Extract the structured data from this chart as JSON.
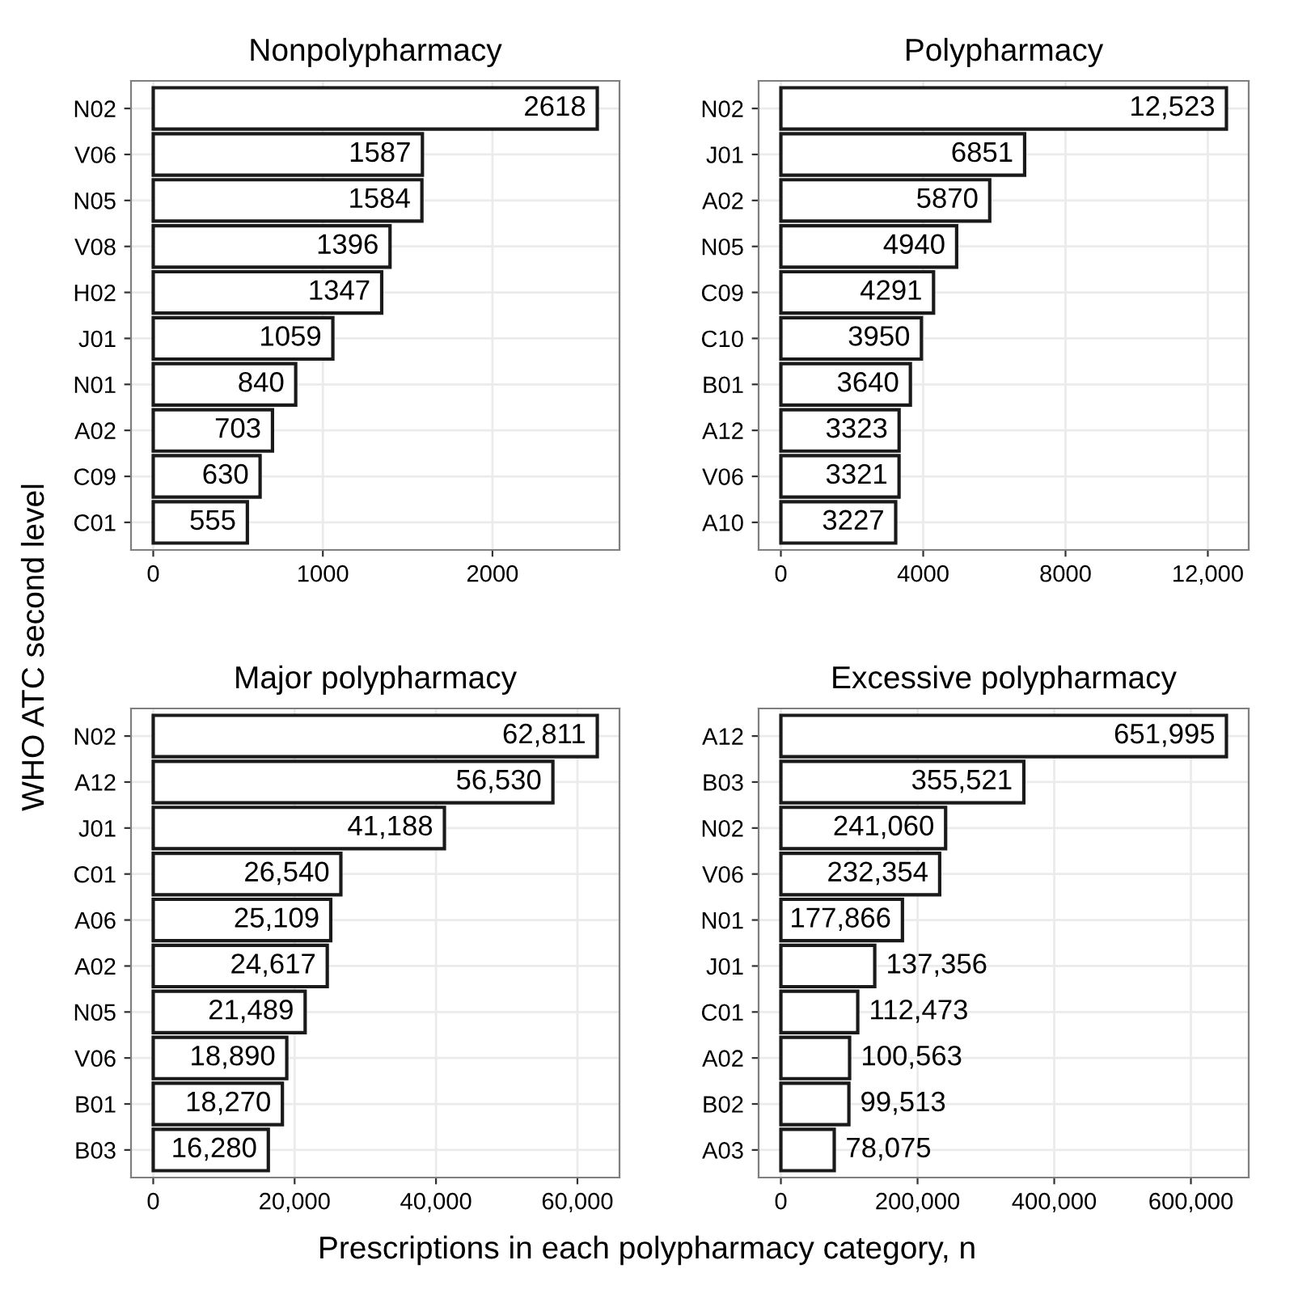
{
  "chart_data": [
    {
      "type": "bar",
      "orientation": "horizontal",
      "title": "Nonpolypharmacy",
      "ylabel": "WHO ATC second level",
      "categories": [
        "N02",
        "V06",
        "N05",
        "V08",
        "H02",
        "J01",
        "N01",
        "A02",
        "C09",
        "C01"
      ],
      "values": [
        2618,
        1587,
        1584,
        1396,
        1347,
        1059,
        840,
        703,
        630,
        555
      ],
      "value_labels": [
        "2618",
        "1587",
        "1584",
        "1396",
        "1347",
        "1059",
        "840",
        "703",
        "630",
        "555"
      ],
      "color": "#ffffff",
      "xlim": [
        -131,
        2749
      ],
      "xticks": [
        0,
        1000,
        2000
      ],
      "grid": true,
      "legend": false
    },
    {
      "type": "bar",
      "orientation": "horizontal",
      "title": "Polypharmacy",
      "categories": [
        "N02",
        "J01",
        "A02",
        "N05",
        "C09",
        "C10",
        "B01",
        "A12",
        "V06",
        "A10"
      ],
      "values": [
        12523,
        6851,
        5870,
        4940,
        4291,
        3950,
        3640,
        3323,
        3321,
        3227
      ],
      "value_labels": [
        "12,523",
        "6851",
        "5870",
        "4940",
        "4291",
        "3950",
        "3640",
        "3323",
        "3321",
        "3227"
      ],
      "color": "#ffffff",
      "xlim": [
        -626,
        13149
      ],
      "xticks": [
        0,
        4000,
        8000,
        {
          "value": 12000,
          "label": "12,000"
        }
      ],
      "grid": true,
      "legend": false
    },
    {
      "type": "bar",
      "orientation": "horizontal",
      "title": "Major polypharmacy",
      "categories": [
        "N02",
        "A12",
        "J01",
        "C01",
        "A06",
        "A02",
        "N05",
        "V06",
        "B01",
        "B03"
      ],
      "values": [
        62811,
        56530,
        41188,
        26540,
        25109,
        24617,
        21489,
        18890,
        18270,
        16280
      ],
      "value_labels": [
        "62,811",
        "56,530",
        "41,188",
        "26,540",
        "25,109",
        "24,617",
        "21,489",
        "18,890",
        "18,270",
        "16,280"
      ],
      "color": "#ffffff",
      "xlim": [
        -3141,
        65952
      ],
      "xticks": [
        0,
        {
          "value": 20000,
          "label": "20,000"
        },
        {
          "value": 40000,
          "label": "40,000"
        },
        {
          "value": 60000,
          "label": "60,000"
        }
      ],
      "grid": true,
      "legend": false
    },
    {
      "type": "bar",
      "orientation": "horizontal",
      "title": "Excessive polypharmacy",
      "xlabel": "Prescriptions in each polypharmacy category, n",
      "categories": [
        "A12",
        "B03",
        "N02",
        "V06",
        "N01",
        "J01",
        "C01",
        "A02",
        "B02",
        "A03"
      ],
      "values": [
        651995,
        355521,
        241060,
        232354,
        177866,
        137356,
        112473,
        100563,
        99513,
        78075
      ],
      "value_labels": [
        "651,995",
        "355,521",
        "241,060",
        "232,354",
        "177,866",
        "137,356",
        "112,473",
        "100,563",
        "99,513",
        "78,075"
      ],
      "color": "#ffffff",
      "xlim": [
        -32600,
        684595
      ],
      "xticks": [
        0,
        {
          "value": 200000,
          "label": "200,000"
        },
        {
          "value": 400000,
          "label": "400,000"
        },
        {
          "value": 600000,
          "label": "600,000"
        }
      ],
      "grid": true,
      "legend": false
    }
  ]
}
